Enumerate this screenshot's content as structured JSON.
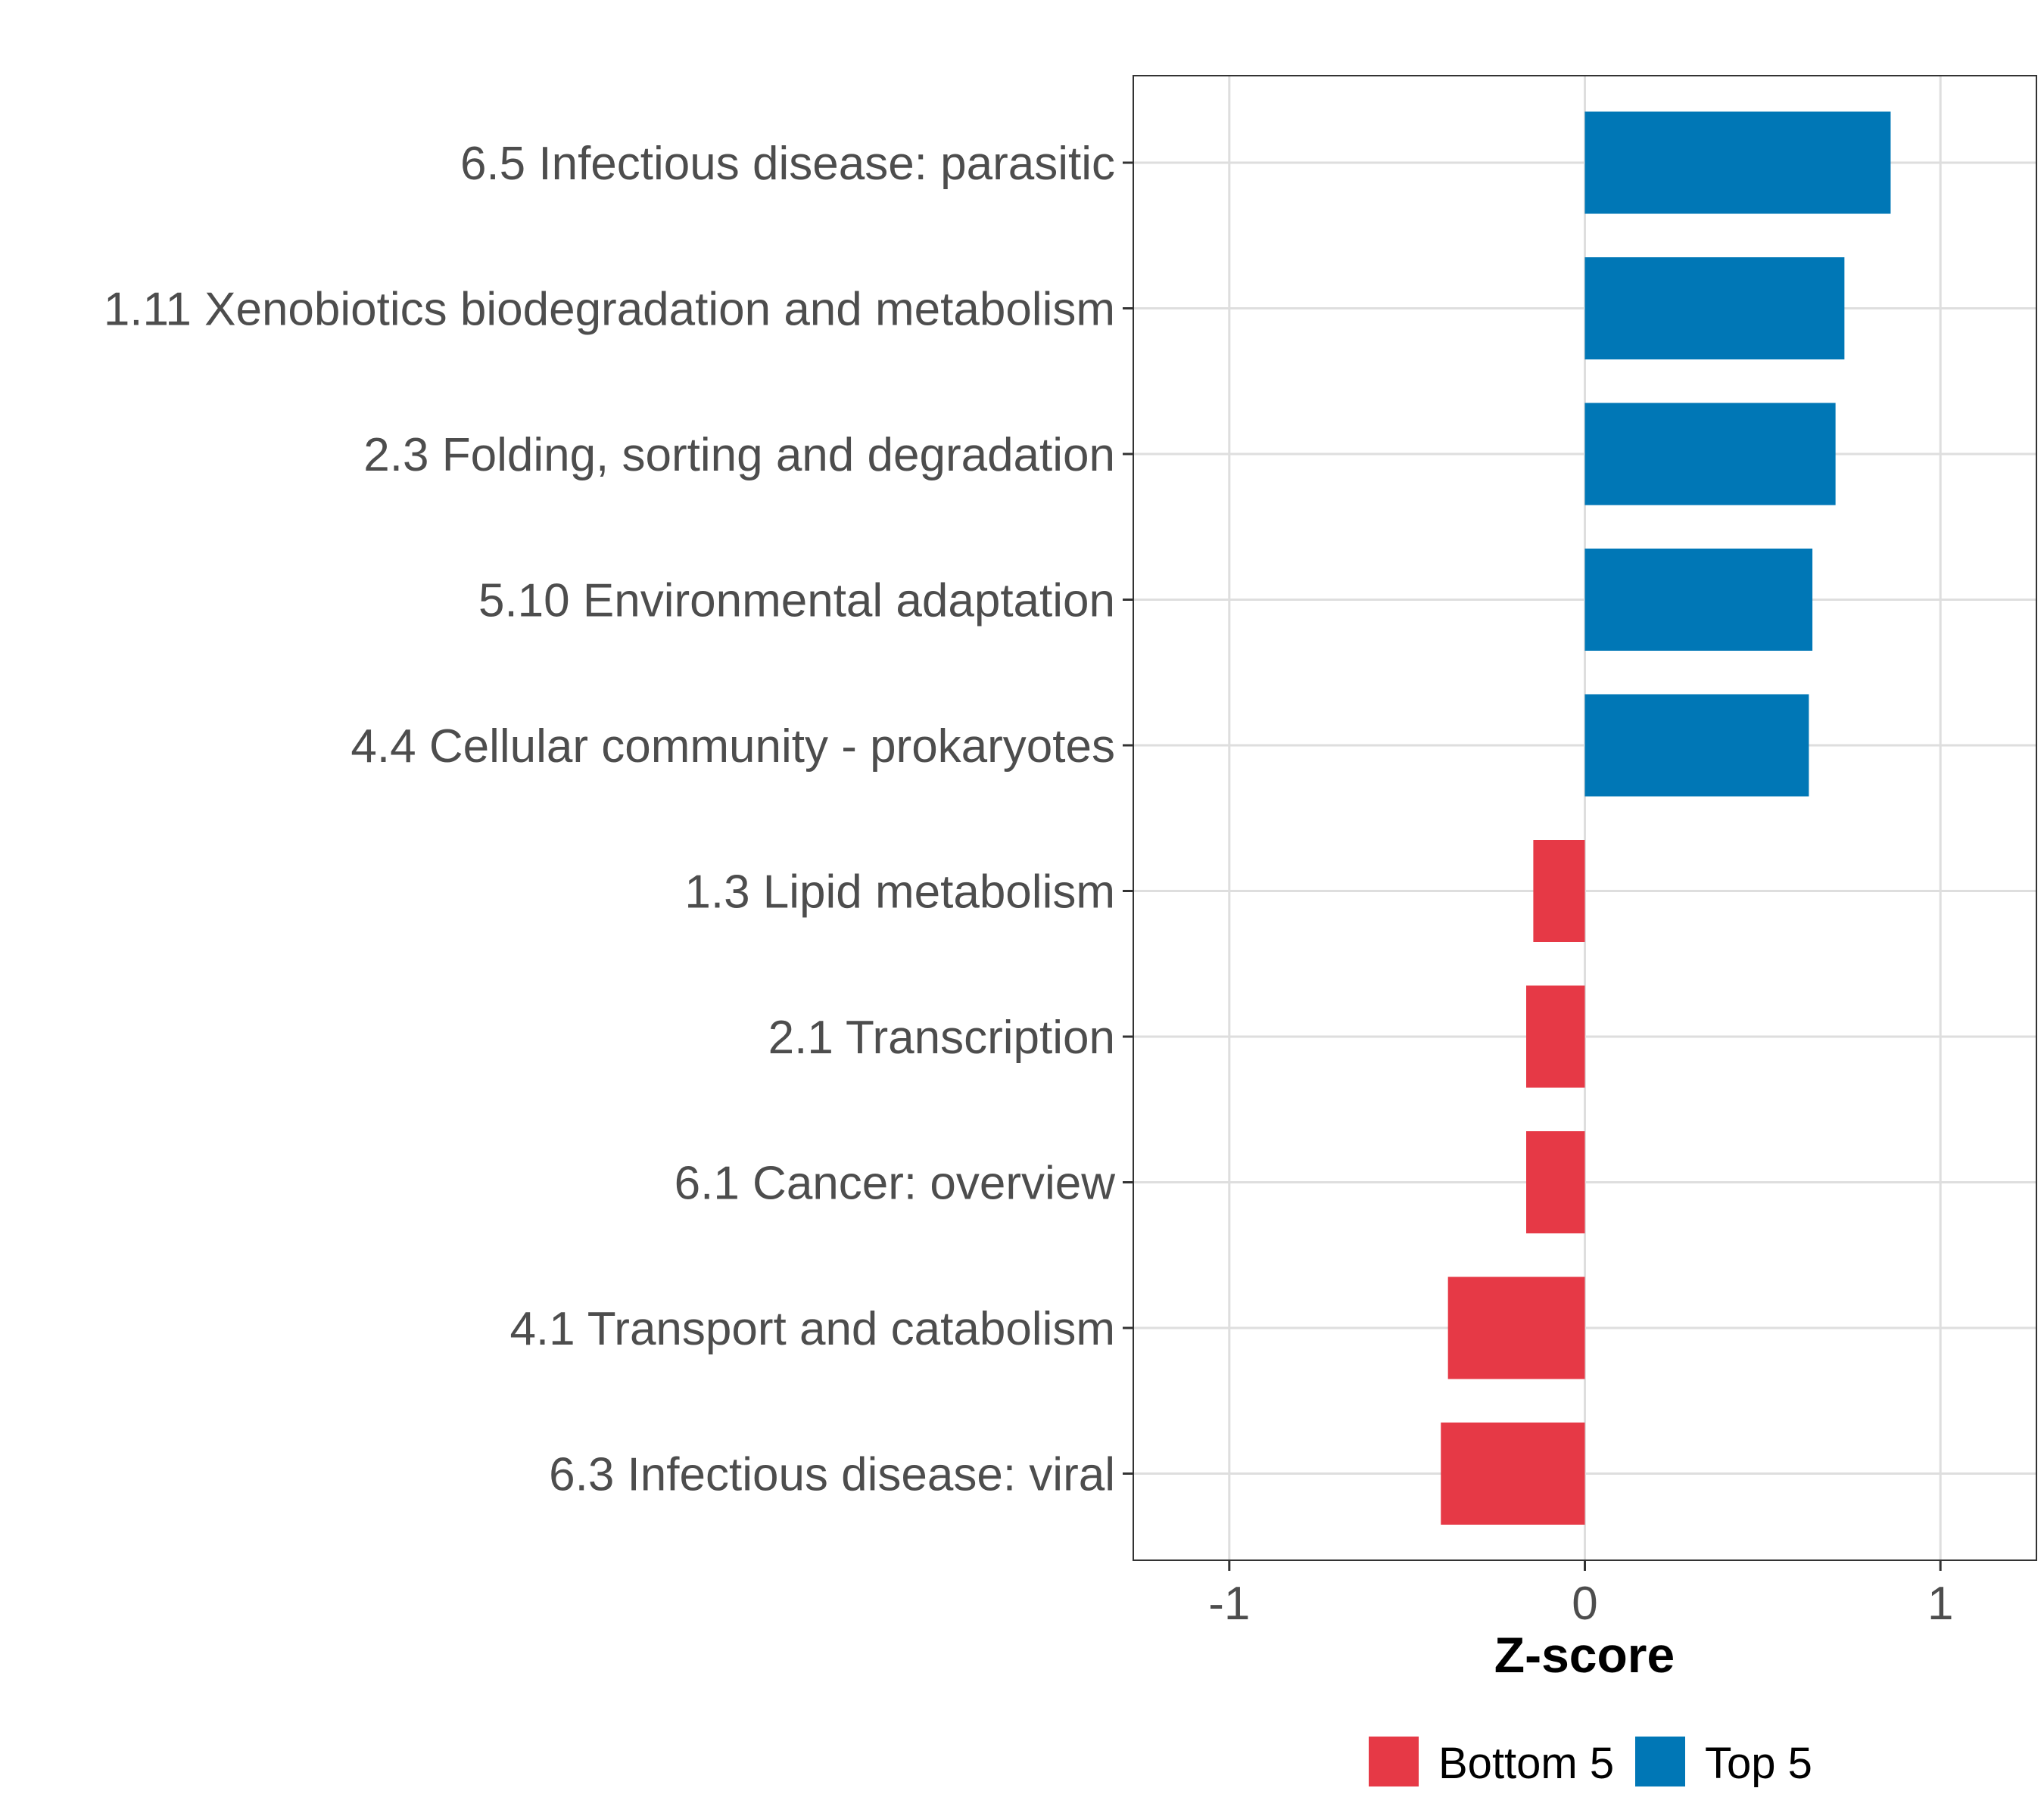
{
  "chart_data": {
    "type": "bar",
    "orientation": "horizontal",
    "title": "",
    "xlabel": "Z-score",
    "ylabel": "",
    "xlim": [
      -1.27,
      1.27
    ],
    "xticks": [
      -1,
      0,
      1
    ],
    "xtick_labels": [
      "-1",
      "0",
      "1"
    ],
    "grid": true,
    "legend_position": "bottom",
    "categories": [
      "6.5 Infectious disease: parasitic",
      "1.11 Xenobiotics biodegradation and metabolism",
      "2.3 Folding, sorting and degradation",
      "5.10 Environmental adaptation",
      "4.4 Cellular community - prokaryotes",
      "1.3 Lipid metabolism",
      "2.1 Transcription",
      "6.1 Cancer: overview",
      "4.1 Transport and catabolism",
      "6.3 Infectious disease: viral"
    ],
    "values": [
      0.86,
      0.73,
      0.705,
      0.64,
      0.63,
      -0.145,
      -0.165,
      -0.165,
      -0.385,
      -0.405
    ],
    "groups": [
      "Top 5",
      "Top 5",
      "Top 5",
      "Top 5",
      "Top 5",
      "Bottom 5",
      "Bottom 5",
      "Bottom 5",
      "Bottom 5",
      "Bottom 5"
    ],
    "legend": [
      {
        "label": "Bottom 5",
        "color": "#E63946"
      },
      {
        "label": "Top 5",
        "color": "#0077B6"
      }
    ]
  }
}
